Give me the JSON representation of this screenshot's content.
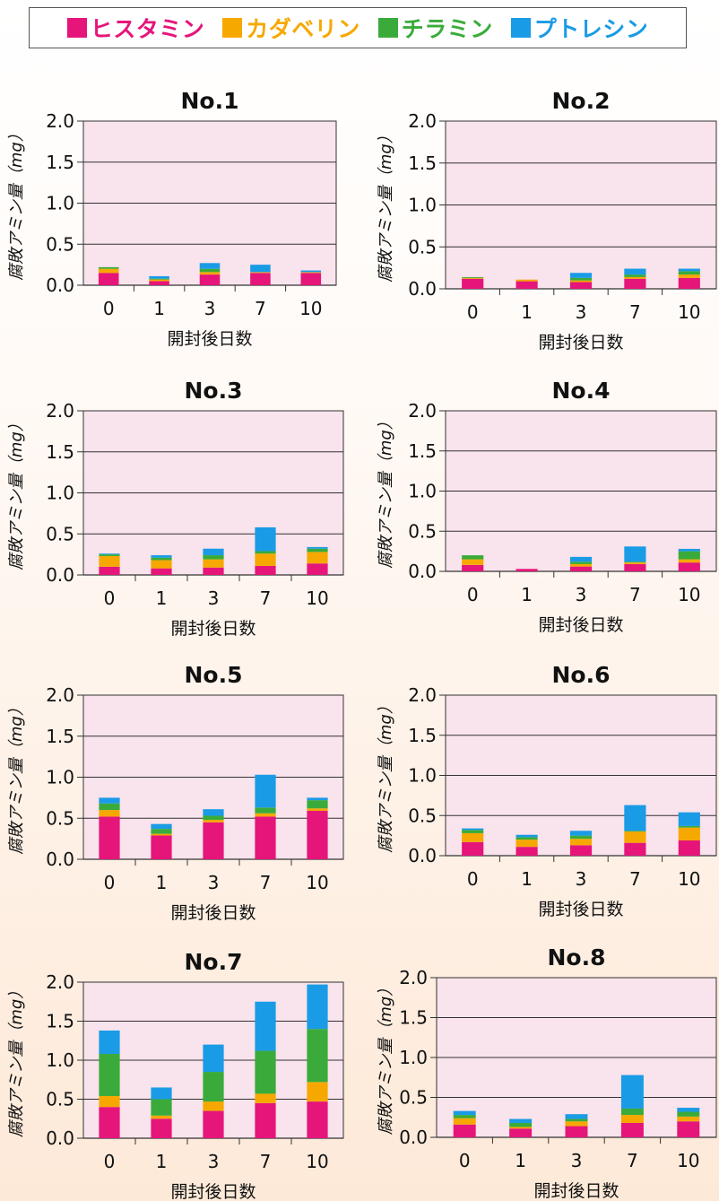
{
  "legend": {
    "items": [
      {
        "label": "ヒスタミン",
        "color": "#e5157a"
      },
      {
        "label": "カダベリン",
        "color": "#f6a800"
      },
      {
        "label": "チラミン",
        "color": "#3aab3a"
      },
      {
        "label": "プトレシン",
        "color": "#1a9be6"
      }
    ]
  },
  "colors": {
    "plot_bg": "#f9e3ec"
  },
  "chart_data": [
    {
      "type": "bar",
      "stacked": true,
      "title": "No.1",
      "xlabel": "開封後日数",
      "ylabel": "腐敗アミン量（mg）",
      "ylim": [
        0,
        2.0
      ],
      "yticks": [
        "0.0",
        "0.5",
        "1.0",
        "1.5",
        "2.0"
      ],
      "categories": [
        "0",
        "1",
        "3",
        "7",
        "10"
      ],
      "series": [
        {
          "name": "ヒスタミン",
          "values": [
            0.15,
            0.05,
            0.13,
            0.15,
            0.15
          ]
        },
        {
          "name": "カダベリン",
          "values": [
            0.05,
            0.02,
            0.03,
            0.01,
            0.01
          ]
        },
        {
          "name": "チラミン",
          "values": [
            0.02,
            0.01,
            0.04,
            0.0,
            0.0
          ]
        },
        {
          "name": "プトレシン",
          "values": [
            0.0,
            0.03,
            0.07,
            0.09,
            0.02
          ]
        }
      ]
    },
    {
      "type": "bar",
      "stacked": true,
      "title": "No.2",
      "xlabel": "開封後日数",
      "ylabel": "腐敗アミン量（mg）",
      "ylim": [
        0,
        2.0
      ],
      "yticks": [
        "0.0",
        "0.5",
        "1.0",
        "1.5",
        "2.0"
      ],
      "categories": [
        "0",
        "1",
        "3",
        "7",
        "10"
      ],
      "series": [
        {
          "name": "ヒスタミン",
          "values": [
            0.12,
            0.09,
            0.08,
            0.12,
            0.13
          ]
        },
        {
          "name": "カダベリン",
          "values": [
            0.01,
            0.02,
            0.02,
            0.02,
            0.04
          ]
        },
        {
          "name": "チラミン",
          "values": [
            0.01,
            0.0,
            0.03,
            0.03,
            0.04
          ]
        },
        {
          "name": "プトレシン",
          "values": [
            0.0,
            0.0,
            0.06,
            0.07,
            0.03
          ]
        }
      ]
    },
    {
      "type": "bar",
      "stacked": true,
      "title": "No.3",
      "xlabel": "開封後日数",
      "ylabel": "腐敗アミン量（mg）",
      "ylim": [
        0,
        2.0
      ],
      "yticks": [
        "0.0",
        "0.5",
        "1.0",
        "1.5",
        "2.0"
      ],
      "categories": [
        "0",
        "1",
        "3",
        "7",
        "10"
      ],
      "series": [
        {
          "name": "ヒスタミン",
          "values": [
            0.1,
            0.08,
            0.09,
            0.11,
            0.14
          ]
        },
        {
          "name": "カダベリン",
          "values": [
            0.13,
            0.1,
            0.1,
            0.15,
            0.14
          ]
        },
        {
          "name": "チラミン",
          "values": [
            0.02,
            0.03,
            0.05,
            0.03,
            0.04
          ]
        },
        {
          "name": "プトレシン",
          "values": [
            0.01,
            0.03,
            0.08,
            0.29,
            0.02
          ]
        }
      ]
    },
    {
      "type": "bar",
      "stacked": true,
      "title": "No.4",
      "xlabel": "開封後日数",
      "ylabel": "腐敗アミン量（mg）",
      "ylim": [
        0,
        2.0
      ],
      "yticks": [
        "0.0",
        "0.5",
        "1.0",
        "1.5",
        "2.0"
      ],
      "categories": [
        "0",
        "1",
        "3",
        "7",
        "10"
      ],
      "series": [
        {
          "name": "ヒスタミン",
          "values": [
            0.08,
            0.03,
            0.06,
            0.09,
            0.11
          ]
        },
        {
          "name": "カダベリン",
          "values": [
            0.07,
            0.0,
            0.03,
            0.02,
            0.04
          ]
        },
        {
          "name": "チラミン",
          "values": [
            0.05,
            0.0,
            0.03,
            0.01,
            0.1
          ]
        },
        {
          "name": "プトレシン",
          "values": [
            0.0,
            0.0,
            0.06,
            0.19,
            0.03
          ]
        }
      ]
    },
    {
      "type": "bar",
      "stacked": true,
      "title": "No.5",
      "xlabel": "開封後日数",
      "ylabel": "腐敗アミン量（mg）",
      "ylim": [
        0,
        2.0
      ],
      "yticks": [
        "0.0",
        "0.5",
        "1.0",
        "1.5",
        "2.0"
      ],
      "categories": [
        "0",
        "1",
        "3",
        "7",
        "10"
      ],
      "series": [
        {
          "name": "ヒスタミン",
          "values": [
            0.52,
            0.29,
            0.45,
            0.52,
            0.59
          ]
        },
        {
          "name": "カダベリン",
          "values": [
            0.08,
            0.02,
            0.03,
            0.04,
            0.03
          ]
        },
        {
          "name": "チラミン",
          "values": [
            0.08,
            0.06,
            0.05,
            0.07,
            0.1
          ]
        },
        {
          "name": "プトレシン",
          "values": [
            0.07,
            0.06,
            0.08,
            0.4,
            0.03
          ]
        }
      ]
    },
    {
      "type": "bar",
      "stacked": true,
      "title": "No.6",
      "xlabel": "開封後日数",
      "ylabel": "腐敗アミン量（mg）",
      "ylim": [
        0,
        2.0
      ],
      "yticks": [
        "0.0",
        "0.5",
        "1.0",
        "1.5",
        "2.0"
      ],
      "categories": [
        "0",
        "1",
        "3",
        "7",
        "10"
      ],
      "series": [
        {
          "name": "ヒスタミン",
          "values": [
            0.17,
            0.11,
            0.13,
            0.16,
            0.19
          ]
        },
        {
          "name": "カダベリン",
          "values": [
            0.11,
            0.09,
            0.08,
            0.14,
            0.16
          ]
        },
        {
          "name": "チラミン",
          "values": [
            0.04,
            0.03,
            0.04,
            0.01,
            0.02
          ]
        },
        {
          "name": "プトレシン",
          "values": [
            0.02,
            0.03,
            0.06,
            0.32,
            0.17
          ]
        }
      ]
    },
    {
      "type": "bar",
      "stacked": true,
      "title": "No.7",
      "xlabel": "開封後日数",
      "ylabel": "腐敗アミン量（mg）",
      "ylim": [
        0,
        2.0
      ],
      "yticks": [
        "0.0",
        "0.5",
        "1.0",
        "1.5",
        "2.0"
      ],
      "categories": [
        "0",
        "1",
        "3",
        "7",
        "10"
      ],
      "series": [
        {
          "name": "ヒスタミン",
          "values": [
            0.4,
            0.25,
            0.35,
            0.45,
            0.47
          ]
        },
        {
          "name": "カダベリン",
          "values": [
            0.14,
            0.04,
            0.12,
            0.12,
            0.25
          ]
        },
        {
          "name": "チラミン",
          "values": [
            0.54,
            0.21,
            0.38,
            0.55,
            0.68
          ]
        },
        {
          "name": "プトレシン",
          "values": [
            0.3,
            0.15,
            0.35,
            0.63,
            0.57
          ]
        }
      ]
    },
    {
      "type": "bar",
      "stacked": true,
      "title": "No.8",
      "xlabel": "開封後日数",
      "ylabel": "腐敗アミン量（mg）",
      "ylim": [
        0,
        2.0
      ],
      "yticks": [
        "0.0",
        "0.5",
        "1.0",
        "1.5",
        "2.0"
      ],
      "categories": [
        "0",
        "1",
        "3",
        "7",
        "10"
      ],
      "series": [
        {
          "name": "ヒスタミン",
          "values": [
            0.16,
            0.11,
            0.14,
            0.18,
            0.2
          ]
        },
        {
          "name": "カダベリン",
          "values": [
            0.08,
            0.02,
            0.06,
            0.1,
            0.06
          ]
        },
        {
          "name": "チラミン",
          "values": [
            0.04,
            0.05,
            0.03,
            0.08,
            0.06
          ]
        },
        {
          "name": "プトレシン",
          "values": [
            0.05,
            0.05,
            0.06,
            0.42,
            0.05
          ]
        }
      ]
    }
  ]
}
